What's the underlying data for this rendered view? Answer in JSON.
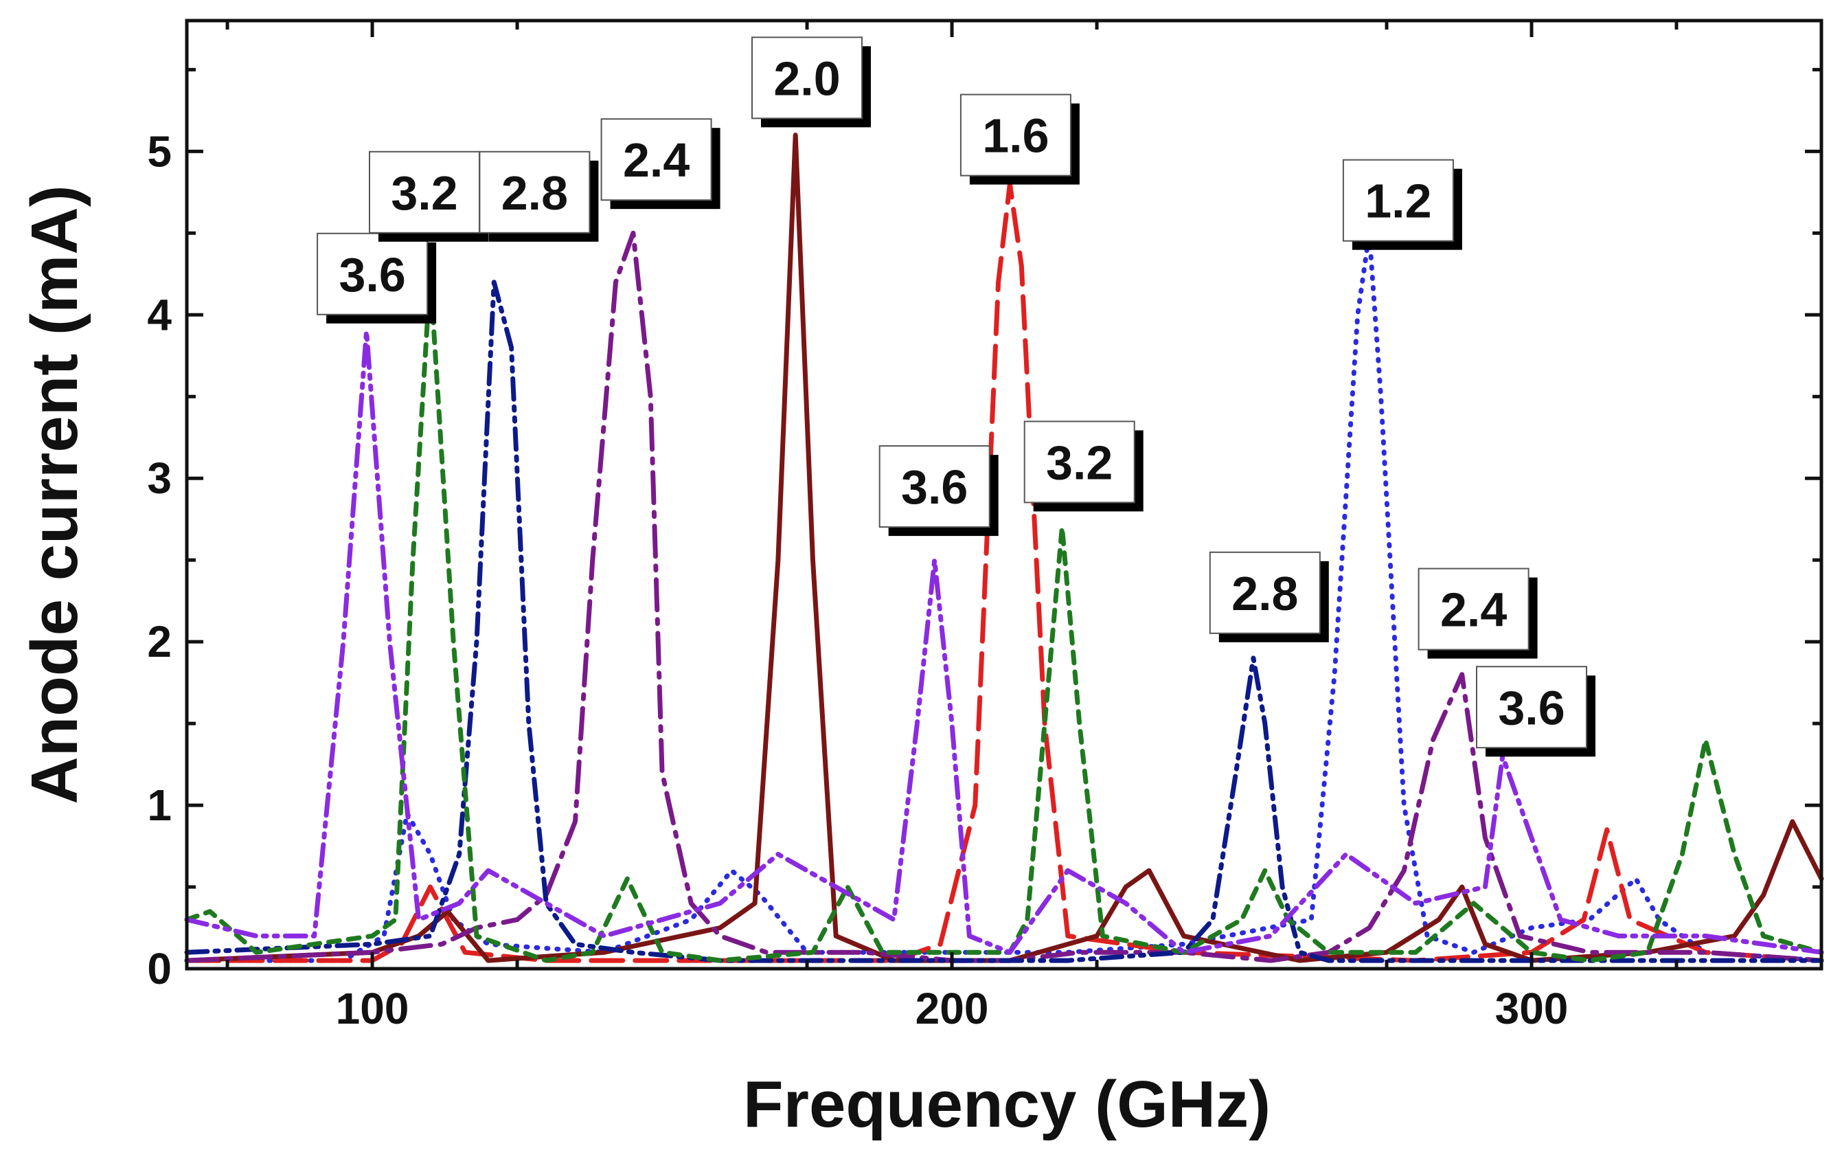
{
  "chart_data": {
    "type": "line",
    "title": "",
    "xlabel": "Frequency (GHz)",
    "ylabel": "Anode current (mA)",
    "xlim": [
      68,
      350
    ],
    "ylim": [
      0,
      5.8
    ],
    "xticks": [
      100,
      200,
      300
    ],
    "yticks": [
      0,
      1,
      2,
      3,
      4,
      5
    ],
    "xtick_labels": [
      "100",
      "200",
      "300"
    ],
    "ytick_labels": [
      "0",
      "1",
      "2",
      "3",
      "4",
      "5"
    ],
    "grid": false,
    "series": [
      {
        "name": "1.2",
        "color": "#2a2ae0",
        "dash": "dotted",
        "x": [
          68,
          95,
          102,
          106,
          110,
          114,
          120,
          140,
          155,
          162,
          167,
          175,
          190,
          205,
          220,
          240,
          262,
          266,
          270,
          272,
          274,
          278,
          282,
          290,
          300,
          310,
          318,
          322,
          330,
          350
        ],
        "y": [
          0.05,
          0.05,
          0.2,
          0.95,
          0.7,
          0.3,
          0.15,
          0.1,
          0.3,
          0.6,
          0.45,
          0.1,
          0.1,
          0.1,
          0.1,
          0.15,
          0.3,
          1.8,
          4.0,
          4.5,
          3.5,
          1.0,
          0.2,
          0.1,
          0.25,
          0.3,
          0.55,
          0.3,
          0.1,
          0.05
        ]
      },
      {
        "name": "1.6",
        "color": "#e02020",
        "dash": "long-dash",
        "x": [
          68,
          100,
          105,
          110,
          116,
          130,
          160,
          190,
          198,
          204,
          208,
          210,
          212,
          216,
          220,
          240,
          280,
          300,
          309,
          313,
          317,
          330,
          350
        ],
        "y": [
          0.05,
          0.05,
          0.15,
          0.5,
          0.1,
          0.05,
          0.05,
          0.05,
          0.15,
          1.0,
          4.2,
          4.8,
          4.3,
          1.5,
          0.2,
          0.1,
          0.05,
          0.1,
          0.3,
          0.85,
          0.3,
          0.1,
          0.05
        ]
      },
      {
        "name": "2.0",
        "color": "#7a1515",
        "dash": "solid",
        "x": [
          68,
          100,
          108,
          113,
          120,
          140,
          160,
          166,
          170,
          173,
          176,
          180,
          190,
          210,
          225,
          230,
          234,
          240,
          260,
          275,
          284,
          288,
          292,
          300,
          320,
          335,
          340,
          345,
          350
        ],
        "y": [
          0.05,
          0.1,
          0.2,
          0.35,
          0.05,
          0.1,
          0.25,
          0.4,
          2.5,
          5.1,
          2.5,
          0.2,
          0.05,
          0.05,
          0.2,
          0.5,
          0.6,
          0.2,
          0.05,
          0.1,
          0.3,
          0.5,
          0.15,
          0.05,
          0.1,
          0.2,
          0.45,
          0.9,
          0.55
        ]
      },
      {
        "name": "2.4",
        "color": "#7a1a8a",
        "dash": "dash-dot",
        "x": [
          68,
          100,
          112,
          118,
          125,
          130,
          135,
          138,
          142,
          145,
          148,
          150,
          155,
          160,
          168,
          175,
          185,
          200,
          210,
          222,
          232,
          240,
          255,
          265,
          272,
          278,
          283,
          288,
          292,
          298,
          310,
          330,
          350
        ],
        "y": [
          0.05,
          0.1,
          0.15,
          0.25,
          0.3,
          0.45,
          0.9,
          2.5,
          4.2,
          4.5,
          3.5,
          1.2,
          0.4,
          0.2,
          0.1,
          0.1,
          0.1,
          0.05,
          0.05,
          0.1,
          0.1,
          0.1,
          0.05,
          0.1,
          0.25,
          0.6,
          1.4,
          1.8,
          0.8,
          0.2,
          0.1,
          0.1,
          0.05
        ]
      },
      {
        "name": "2.8",
        "color": "#0d1a8a",
        "dash": "dash-dot-dot",
        "x": [
          68,
          100,
          110,
          115,
          118,
          121,
          124,
          127,
          130,
          135,
          145,
          160,
          180,
          200,
          220,
          240,
          245,
          249,
          252,
          254,
          257,
          260,
          265,
          280,
          300,
          320,
          350
        ],
        "y": [
          0.1,
          0.15,
          0.2,
          0.7,
          2.0,
          4.2,
          3.8,
          1.5,
          0.4,
          0.15,
          0.1,
          0.05,
          0.05,
          0.05,
          0.05,
          0.1,
          0.3,
          1.2,
          1.9,
          1.5,
          0.5,
          0.1,
          0.05,
          0.05,
          0.05,
          0.05,
          0.05
        ]
      },
      {
        "name": "3.2",
        "color": "#1f7a1f",
        "dash": "short-dash",
        "x": [
          68,
          72,
          80,
          100,
          104,
          107,
          110,
          114,
          118,
          130,
          138,
          144,
          150,
          160,
          176,
          182,
          188,
          200,
          210,
          213,
          216,
          219,
          222,
          226,
          240,
          250,
          254,
          258,
          265,
          280,
          290,
          300,
          310,
          320,
          326,
          330,
          335,
          340,
          350
        ],
        "y": [
          0.3,
          0.35,
          0.1,
          0.2,
          0.3,
          2.5,
          4.25,
          2.0,
          0.2,
          0.05,
          0.1,
          0.55,
          0.1,
          0.05,
          0.1,
          0.5,
          0.1,
          0.1,
          0.1,
          0.3,
          1.5,
          2.7,
          1.5,
          0.2,
          0.1,
          0.3,
          0.6,
          0.3,
          0.1,
          0.1,
          0.4,
          0.1,
          0.05,
          0.1,
          0.7,
          1.4,
          0.7,
          0.2,
          0.1
        ]
      },
      {
        "name": "3.6",
        "color": "#8a2be2",
        "dash": "dash-dot-dot",
        "x": [
          68,
          80,
          90,
          95,
          99,
          103,
          108,
          115,
          120,
          130,
          140,
          160,
          170,
          180,
          190,
          194,
          197,
          200,
          203,
          210,
          220,
          230,
          240,
          255,
          268,
          280,
          292,
          295,
          299,
          305,
          315,
          330,
          350
        ],
        "y": [
          0.3,
          0.2,
          0.2,
          2.0,
          3.9,
          2.0,
          0.3,
          0.4,
          0.6,
          0.4,
          0.2,
          0.4,
          0.7,
          0.5,
          0.3,
          1.5,
          2.5,
          1.5,
          0.2,
          0.1,
          0.6,
          0.4,
          0.1,
          0.2,
          0.7,
          0.4,
          0.5,
          1.3,
          0.9,
          0.3,
          0.2,
          0.2,
          0.1
        ]
      }
    ],
    "annotations": [
      {
        "text": "3.6",
        "x": 100,
        "y": 4.25
      },
      {
        "text": "3.2",
        "x": 109,
        "y": 4.75
      },
      {
        "text": "2.8",
        "x": 128,
        "y": 4.75
      },
      {
        "text": "2.4",
        "x": 149,
        "y": 4.95
      },
      {
        "text": "2.0",
        "x": 175,
        "y": 5.45
      },
      {
        "text": "1.6",
        "x": 211,
        "y": 5.1
      },
      {
        "text": "1.2",
        "x": 277,
        "y": 4.7
      },
      {
        "text": "3.6",
        "x": 197,
        "y": 2.95
      },
      {
        "text": "3.2",
        "x": 222,
        "y": 3.1
      },
      {
        "text": "2.8",
        "x": 254,
        "y": 2.3
      },
      {
        "text": "2.4",
        "x": 290,
        "y": 2.2
      },
      {
        "text": "3.6",
        "x": 300,
        "y": 1.6
      }
    ]
  }
}
